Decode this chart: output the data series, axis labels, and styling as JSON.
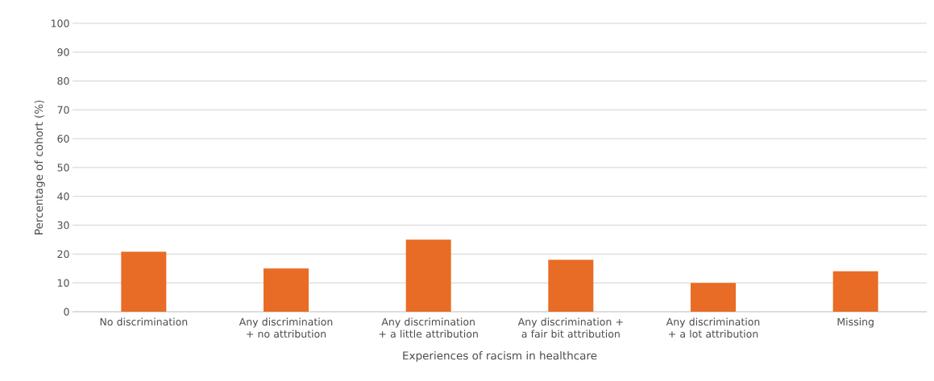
{
  "chart_data": {
    "type": "bar",
    "xlabel": "Experiences of racism in healthcare",
    "ylabel": "Percentage of cohort (%)",
    "categories": [
      "No discrimination",
      "Any discrimination + no attribution",
      "Any discrimination + a little attribution",
      "Any discrimination + a fair bit attribution",
      "Any discrimination + a lot attribution",
      "Missing"
    ],
    "values": [
      20.8,
      15,
      25,
      18,
      10,
      14
    ],
    "color": "#e86c25",
    "ylim": [
      0,
      100
    ],
    "yticks": [
      0,
      10,
      20,
      30,
      40,
      50,
      60,
      70,
      80,
      90,
      100
    ],
    "grid": "y"
  }
}
